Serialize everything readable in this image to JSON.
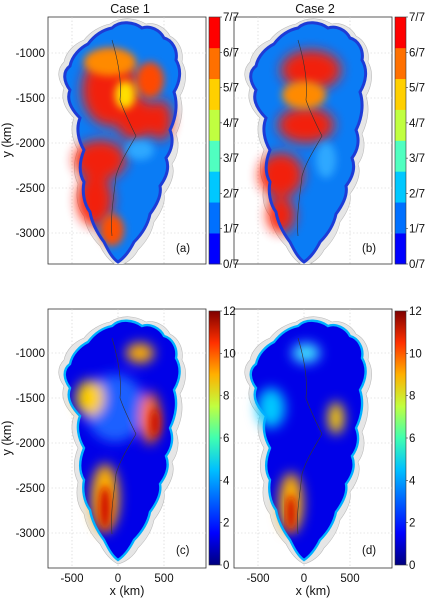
{
  "colors": {
    "frame": "#333333",
    "grid": "#c8c8c8",
    "background_outline": "#bdbdbd",
    "jet_scale": [
      "#00007f",
      "#0000ff",
      "#0080ff",
      "#00ffff",
      "#80ff80",
      "#ffff00",
      "#ff8000",
      "#ff0000",
      "#7f0000"
    ]
  },
  "panels": [
    {
      "id": "a",
      "title": "Case 1",
      "label": "(a)"
    },
    {
      "id": "b",
      "title": "Case 2",
      "label": "(b)"
    },
    {
      "id": "c",
      "title": "",
      "label": "(c)"
    },
    {
      "id": "d",
      "title": "",
      "label": "(d)"
    }
  ],
  "axes": {
    "xlabel": "x (km)",
    "ylabel": "y (km)",
    "xticks": [
      "-500",
      "0",
      "500"
    ],
    "yticks": [
      "-1000",
      "-1500",
      "-2000",
      "-2500",
      "-3000"
    ]
  },
  "colorbar_top": {
    "ticks": [
      "7/7",
      "6/7",
      "5/7",
      "4/7",
      "3/7",
      "2/7",
      "1/7",
      "0/7"
    ],
    "bands": [
      "#0000ff",
      "#0070ff",
      "#00c8ff",
      "#50ffc0",
      "#c0ff40",
      "#ffd000",
      "#ff7000",
      "#ff0000"
    ]
  },
  "colorbar_bottom": {
    "ticks": [
      "12",
      "10",
      "8",
      "6",
      "4",
      "2",
      "0"
    ]
  }
}
